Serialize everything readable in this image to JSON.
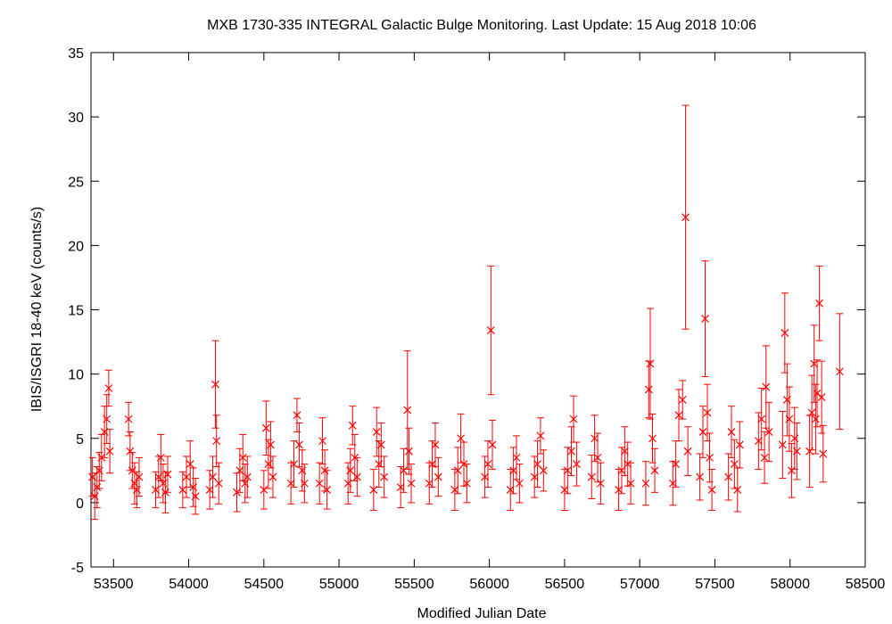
{
  "chart_data": {
    "type": "scatter",
    "title": "MXB 1730-335   INTEGRAL Galactic Bulge Monitoring.  Last Update: 15 Aug 2018 10:06",
    "xlabel": "Modified Julian Date",
    "ylabel": "IBIS/ISGRI 18-40 keV (counts/s)",
    "xlim": [
      53350,
      58500
    ],
    "ylim": [
      -5,
      35
    ],
    "xticks": [
      53500,
      54000,
      54500,
      55000,
      55500,
      56000,
      56500,
      57000,
      57500,
      58000,
      58500
    ],
    "yticks": [
      -5,
      0,
      5,
      10,
      15,
      20,
      25,
      30,
      35
    ],
    "grid": false,
    "marker": "x",
    "error_bars": true,
    "color": "#ff0000",
    "points": [
      {
        "x": 53360,
        "y": 2.0,
        "err": 1.5
      },
      {
        "x": 53375,
        "y": 0.5,
        "err": 1.8
      },
      {
        "x": 53390,
        "y": 1.2,
        "err": 1.6
      },
      {
        "x": 53405,
        "y": 2.5,
        "err": 1.4
      },
      {
        "x": 53420,
        "y": 3.5,
        "err": 1.8
      },
      {
        "x": 53440,
        "y": 5.5,
        "err": 2.0
      },
      {
        "x": 53455,
        "y": 6.5,
        "err": 1.9
      },
      {
        "x": 53468,
        "y": 8.9,
        "err": 1.4
      },
      {
        "x": 53475,
        "y": 4.0,
        "err": 1.7
      },
      {
        "x": 53600,
        "y": 6.5,
        "err": 1.3
      },
      {
        "x": 53610,
        "y": 4.0,
        "err": 1.5
      },
      {
        "x": 53625,
        "y": 2.5,
        "err": 1.4
      },
      {
        "x": 53640,
        "y": 1.5,
        "err": 1.6
      },
      {
        "x": 53655,
        "y": 1.0,
        "err": 1.4
      },
      {
        "x": 53670,
        "y": 2.0,
        "err": 1.5
      },
      {
        "x": 53780,
        "y": 1.0,
        "err": 1.4
      },
      {
        "x": 53800,
        "y": 2.0,
        "err": 1.6
      },
      {
        "x": 53815,
        "y": 3.5,
        "err": 1.8
      },
      {
        "x": 53830,
        "y": 1.5,
        "err": 1.5
      },
      {
        "x": 53845,
        "y": 0.8,
        "err": 1.6
      },
      {
        "x": 53860,
        "y": 2.2,
        "err": 1.4
      },
      {
        "x": 53960,
        "y": 1.0,
        "err": 1.4
      },
      {
        "x": 53985,
        "y": 2.0,
        "err": 1.6
      },
      {
        "x": 54010,
        "y": 3.0,
        "err": 1.8
      },
      {
        "x": 54030,
        "y": 1.2,
        "err": 1.5
      },
      {
        "x": 54045,
        "y": 0.5,
        "err": 1.4
      },
      {
        "x": 54140,
        "y": 1.0,
        "err": 1.5
      },
      {
        "x": 54160,
        "y": 2.0,
        "err": 1.6
      },
      {
        "x": 54178,
        "y": 9.2,
        "err": 3.4
      },
      {
        "x": 54185,
        "y": 4.8,
        "err": 2.0
      },
      {
        "x": 54200,
        "y": 1.5,
        "err": 1.6
      },
      {
        "x": 54320,
        "y": 0.8,
        "err": 1.5
      },
      {
        "x": 54340,
        "y": 2.5,
        "err": 1.7
      },
      {
        "x": 54360,
        "y": 3.5,
        "err": 1.8
      },
      {
        "x": 54375,
        "y": 1.5,
        "err": 1.5
      },
      {
        "x": 54390,
        "y": 2.0,
        "err": 1.6
      },
      {
        "x": 54500,
        "y": 1.0,
        "err": 1.5
      },
      {
        "x": 54515,
        "y": 5.8,
        "err": 2.1
      },
      {
        "x": 54530,
        "y": 3.0,
        "err": 1.9
      },
      {
        "x": 54545,
        "y": 4.5,
        "err": 1.8
      },
      {
        "x": 54560,
        "y": 2.0,
        "err": 1.6
      },
      {
        "x": 54680,
        "y": 1.5,
        "err": 1.6
      },
      {
        "x": 54700,
        "y": 3.0,
        "err": 1.8
      },
      {
        "x": 54720,
        "y": 6.8,
        "err": 1.3
      },
      {
        "x": 54735,
        "y": 4.5,
        "err": 1.7
      },
      {
        "x": 54755,
        "y": 2.5,
        "err": 1.6
      },
      {
        "x": 54770,
        "y": 1.5,
        "err": 1.5
      },
      {
        "x": 54870,
        "y": 1.5,
        "err": 1.6
      },
      {
        "x": 54890,
        "y": 4.8,
        "err": 1.8
      },
      {
        "x": 54905,
        "y": 2.5,
        "err": 1.6
      },
      {
        "x": 54920,
        "y": 1.0,
        "err": 1.5
      },
      {
        "x": 55060,
        "y": 1.5,
        "err": 1.6
      },
      {
        "x": 55075,
        "y": 2.5,
        "err": 1.7
      },
      {
        "x": 55090,
        "y": 6.0,
        "err": 1.5
      },
      {
        "x": 55105,
        "y": 3.5,
        "err": 1.8
      },
      {
        "x": 55120,
        "y": 2.0,
        "err": 1.5
      },
      {
        "x": 55230,
        "y": 1.0,
        "err": 1.6
      },
      {
        "x": 55250,
        "y": 5.5,
        "err": 1.9
      },
      {
        "x": 55265,
        "y": 3.0,
        "err": 1.8
      },
      {
        "x": 55280,
        "y": 4.5,
        "err": 1.7
      },
      {
        "x": 55300,
        "y": 2.0,
        "err": 1.6
      },
      {
        "x": 55410,
        "y": 1.2,
        "err": 1.6
      },
      {
        "x": 55430,
        "y": 2.5,
        "err": 1.7
      },
      {
        "x": 55455,
        "y": 7.2,
        "err": 4.6
      },
      {
        "x": 55465,
        "y": 4.0,
        "err": 1.8
      },
      {
        "x": 55480,
        "y": 1.5,
        "err": 1.5
      },
      {
        "x": 55600,
        "y": 1.5,
        "err": 1.6
      },
      {
        "x": 55620,
        "y": 3.0,
        "err": 1.8
      },
      {
        "x": 55640,
        "y": 4.5,
        "err": 1.7
      },
      {
        "x": 55660,
        "y": 2.0,
        "err": 1.5
      },
      {
        "x": 55770,
        "y": 1.0,
        "err": 1.6
      },
      {
        "x": 55790,
        "y": 2.5,
        "err": 1.8
      },
      {
        "x": 55810,
        "y": 5.0,
        "err": 1.9
      },
      {
        "x": 55830,
        "y": 3.0,
        "err": 1.7
      },
      {
        "x": 55850,
        "y": 1.5,
        "err": 1.5
      },
      {
        "x": 55970,
        "y": 2.0,
        "err": 1.6
      },
      {
        "x": 55990,
        "y": 3.0,
        "err": 1.8
      },
      {
        "x": 56010,
        "y": 13.4,
        "err": 5.0
      },
      {
        "x": 56020,
        "y": 4.5,
        "err": 1.9
      },
      {
        "x": 56140,
        "y": 1.0,
        "err": 1.6
      },
      {
        "x": 56160,
        "y": 2.5,
        "err": 1.8
      },
      {
        "x": 56180,
        "y": 3.5,
        "err": 1.7
      },
      {
        "x": 56200,
        "y": 1.5,
        "err": 1.5
      },
      {
        "x": 56300,
        "y": 2.0,
        "err": 1.6
      },
      {
        "x": 56320,
        "y": 3.0,
        "err": 1.8
      },
      {
        "x": 56340,
        "y": 5.2,
        "err": 1.4
      },
      {
        "x": 56360,
        "y": 2.5,
        "err": 1.6
      },
      {
        "x": 56500,
        "y": 1.0,
        "err": 1.6
      },
      {
        "x": 56520,
        "y": 2.5,
        "err": 1.8
      },
      {
        "x": 56545,
        "y": 4.0,
        "err": 1.9
      },
      {
        "x": 56560,
        "y": 6.5,
        "err": 1.8
      },
      {
        "x": 56580,
        "y": 3.0,
        "err": 1.7
      },
      {
        "x": 56680,
        "y": 2.0,
        "err": 1.7
      },
      {
        "x": 56700,
        "y": 5.0,
        "err": 1.8
      },
      {
        "x": 56720,
        "y": 3.5,
        "err": 1.9
      },
      {
        "x": 56740,
        "y": 1.5,
        "err": 1.6
      },
      {
        "x": 56860,
        "y": 1.0,
        "err": 1.6
      },
      {
        "x": 56880,
        "y": 2.5,
        "err": 1.8
      },
      {
        "x": 56900,
        "y": 4.0,
        "err": 1.9
      },
      {
        "x": 56920,
        "y": 3.0,
        "err": 1.7
      },
      {
        "x": 56940,
        "y": 1.5,
        "err": 1.6
      },
      {
        "x": 57040,
        "y": 1.5,
        "err": 1.7
      },
      {
        "x": 57060,
        "y": 8.8,
        "err": 2.2
      },
      {
        "x": 57070,
        "y": 10.8,
        "err": 4.3
      },
      {
        "x": 57085,
        "y": 5.0,
        "err": 1.9
      },
      {
        "x": 57100,
        "y": 2.5,
        "err": 1.7
      },
      {
        "x": 57220,
        "y": 1.5,
        "err": 1.7
      },
      {
        "x": 57240,
        "y": 3.0,
        "err": 1.8
      },
      {
        "x": 57260,
        "y": 6.8,
        "err": 2.0
      },
      {
        "x": 57285,
        "y": 8.0,
        "err": 1.5
      },
      {
        "x": 57305,
        "y": 22.2,
        "err": 8.7
      },
      {
        "x": 57320,
        "y": 4.0,
        "err": 1.9
      },
      {
        "x": 57400,
        "y": 2.0,
        "err": 1.8
      },
      {
        "x": 57420,
        "y": 5.5,
        "err": 2.0
      },
      {
        "x": 57435,
        "y": 14.3,
        "err": 4.5
      },
      {
        "x": 57450,
        "y": 7.0,
        "err": 2.2
      },
      {
        "x": 57465,
        "y": 3.5,
        "err": 1.9
      },
      {
        "x": 57480,
        "y": 1.0,
        "err": 1.6
      },
      {
        "x": 57590,
        "y": 2.0,
        "err": 1.8
      },
      {
        "x": 57610,
        "y": 5.5,
        "err": 2.0
      },
      {
        "x": 57630,
        "y": 3.0,
        "err": 1.9
      },
      {
        "x": 57650,
        "y": 1.0,
        "err": 1.7
      },
      {
        "x": 57665,
        "y": 4.5,
        "err": 1.8
      },
      {
        "x": 57790,
        "y": 4.8,
        "err": 2.2
      },
      {
        "x": 57810,
        "y": 6.5,
        "err": 2.4
      },
      {
        "x": 57830,
        "y": 3.5,
        "err": 2.0
      },
      {
        "x": 57840,
        "y": 9.0,
        "err": 3.2
      },
      {
        "x": 57860,
        "y": 5.5,
        "err": 2.3
      },
      {
        "x": 57950,
        "y": 4.5,
        "err": 2.6
      },
      {
        "x": 57965,
        "y": 13.2,
        "err": 3.1
      },
      {
        "x": 57980,
        "y": 8.0,
        "err": 2.8
      },
      {
        "x": 57995,
        "y": 6.5,
        "err": 2.5
      },
      {
        "x": 58010,
        "y": 2.5,
        "err": 2.1
      },
      {
        "x": 58030,
        "y": 5.0,
        "err": 2.4
      },
      {
        "x": 58045,
        "y": 4.0,
        "err": 2.2
      },
      {
        "x": 58130,
        "y": 4.0,
        "err": 2.8
      },
      {
        "x": 58145,
        "y": 7.0,
        "err": 2.9
      },
      {
        "x": 58160,
        "y": 10.8,
        "err": 3.0
      },
      {
        "x": 58170,
        "y": 6.5,
        "err": 2.7
      },
      {
        "x": 58180,
        "y": 8.5,
        "err": 2.6
      },
      {
        "x": 58195,
        "y": 15.5,
        "err": 2.9
      },
      {
        "x": 58210,
        "y": 8.2,
        "err": 2.8
      },
      {
        "x": 58220,
        "y": 3.8,
        "err": 2.2
      },
      {
        "x": 58330,
        "y": 10.2,
        "err": 4.5
      }
    ]
  }
}
